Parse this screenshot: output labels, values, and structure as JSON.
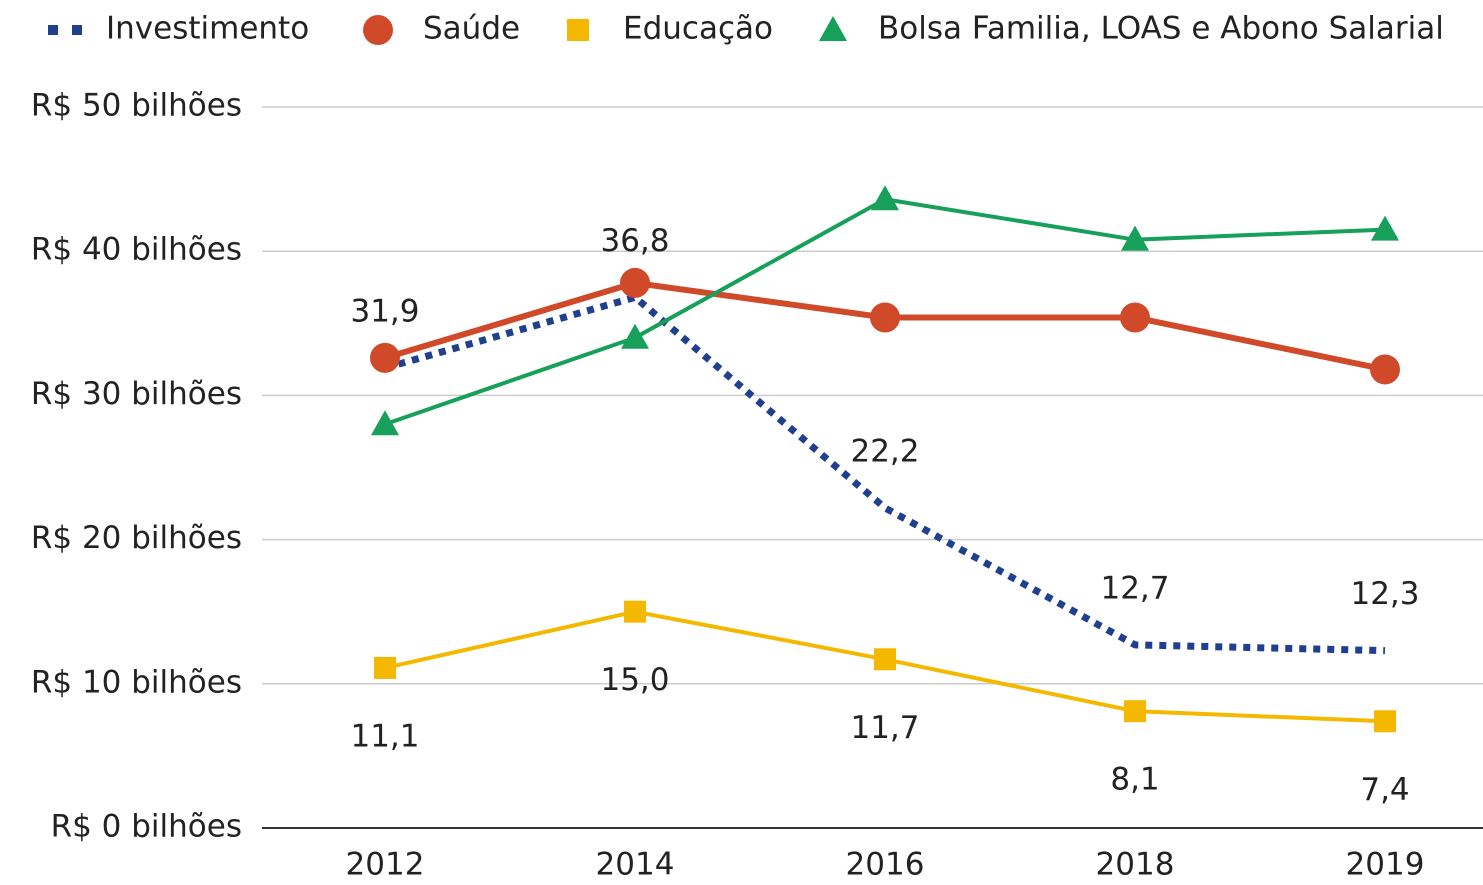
{
  "chart_data": {
    "type": "line",
    "categories": [
      "2012",
      "2014",
      "2016",
      "2018",
      "2019"
    ],
    "series": [
      {
        "name": "Investimento",
        "color": "#1f3f8f",
        "dash": "dotted",
        "marker": "none",
        "values": [
          31.9,
          36.8,
          22.2,
          12.7,
          12.3
        ],
        "value_labels": [
          "31,9",
          "36,8",
          "22,2",
          "12,7",
          "12,3"
        ]
      },
      {
        "name": "Saúde",
        "color": "#d04a2a",
        "marker": "circle",
        "values": [
          32.6,
          37.8,
          35.4,
          35.4,
          31.8
        ]
      },
      {
        "name": "Educação",
        "color": "#f5b800",
        "marker": "square",
        "values": [
          11.1,
          15.0,
          11.7,
          8.1,
          7.4
        ],
        "value_labels": [
          "11,1",
          "15,0",
          "11,7",
          "8,1",
          "7,4"
        ]
      },
      {
        "name": "Bolsa Familia, LOAS e Abono Salarial",
        "color": "#17a05a",
        "marker": "triangle",
        "values": [
          28.0,
          34.0,
          43.6,
          40.8,
          41.5
        ]
      }
    ],
    "ylim": [
      0,
      50
    ],
    "yticks": [
      {
        "value": 0,
        "label": "R$ 0 bilhões"
      },
      {
        "value": 10,
        "label": "R$ 10 bilhões"
      },
      {
        "value": 20,
        "label": "R$ 20 bilhões"
      },
      {
        "value": 30,
        "label": "R$ 30 bilhões"
      },
      {
        "value": 40,
        "label": "R$ 40 bilhões"
      },
      {
        "value": 50,
        "label": "R$ 50 bilhões"
      }
    ],
    "grid": true,
    "legend": "top"
  }
}
